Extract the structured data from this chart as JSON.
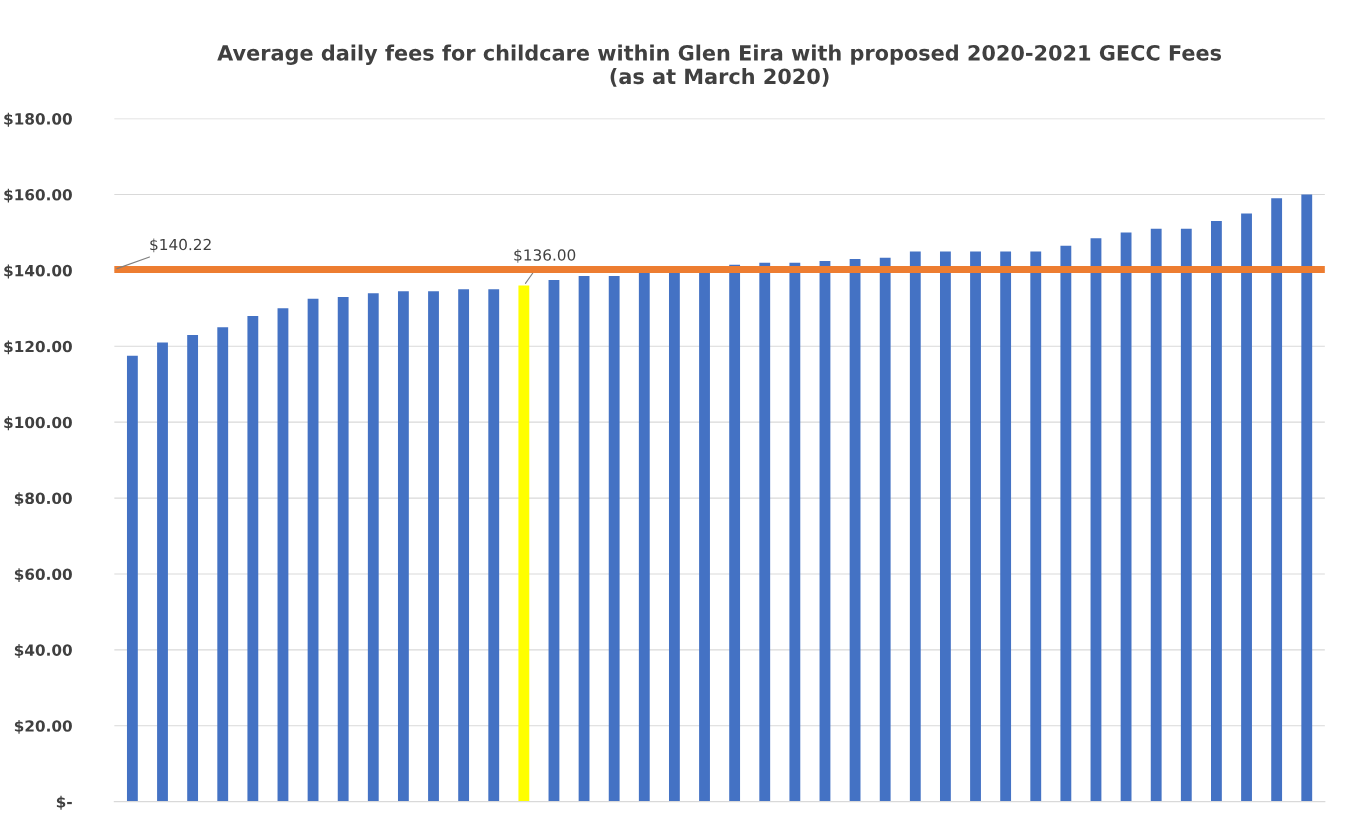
{
  "chart_data": {
    "type": "bar",
    "title": "Average daily fees for childcare within Glen Eira with proposed 2020-2021 GECC Fees\n(as at March 2020)",
    "categories": [
      null,
      null,
      null,
      null,
      null,
      null,
      null,
      null,
      null,
      null,
      null,
      null,
      null,
      null,
      null,
      null,
      null,
      null,
      null,
      null,
      null,
      null,
      null,
      null,
      null,
      null,
      null,
      null,
      null,
      null,
      null,
      null,
      null,
      null,
      null,
      null,
      null,
      null,
      null,
      null
    ],
    "values": [
      117.5,
      121,
      123,
      125,
      128,
      130,
      132.5,
      133,
      134,
      134.5,
      134.5,
      135,
      135,
      136,
      137.5,
      138.5,
      138.5,
      140,
      140,
      140,
      141.5,
      142,
      142,
      142.5,
      143,
      143.3,
      145,
      145,
      145,
      145,
      145,
      146.5,
      148.5,
      150,
      151,
      151,
      153,
      155,
      159,
      160
    ],
    "colors": [
      "#4472c4",
      "#4472c4",
      "#4472c4",
      "#4472c4",
      "#4472c4",
      "#4472c4",
      "#4472c4",
      "#4472c4",
      "#4472c4",
      "#4472c4",
      "#4472c4",
      "#4472c4",
      "#4472c4",
      "#ffff00",
      "#4472c4",
      "#4472c4",
      "#4472c4",
      "#4472c4",
      "#4472c4",
      "#4472c4",
      "#4472c4",
      "#4472c4",
      "#4472c4",
      "#4472c4",
      "#4472c4",
      "#4472c4",
      "#4472c4",
      "#4472c4",
      "#4472c4",
      "#4472c4",
      "#4472c4",
      "#4472c4",
      "#4472c4",
      "#4472c4",
      "#4472c4",
      "#4472c4",
      "#4472c4",
      "#4472c4",
      "#4472c4",
      "#4472c4"
    ],
    "value_labels": [
      null,
      null,
      null,
      null,
      null,
      null,
      null,
      null,
      null,
      null,
      null,
      null,
      null,
      "$136.00",
      null,
      null,
      null,
      null,
      null,
      null,
      null,
      null,
      null,
      null,
      null,
      null,
      null,
      null,
      null,
      null,
      null,
      null,
      null,
      null,
      null,
      null,
      null,
      null,
      null,
      null
    ],
    "ylim": [
      0,
      180
    ],
    "yticks": [
      {
        "value": 0,
        "label": "$-"
      },
      {
        "value": 20,
        "label": "$20.00"
      },
      {
        "value": 40,
        "label": "$40.00"
      },
      {
        "value": 60,
        "label": "$60.00"
      },
      {
        "value": 80,
        "label": "$80.00"
      },
      {
        "value": 100,
        "label": "$100.00"
      },
      {
        "value": 120,
        "label": "$120.00"
      },
      {
        "value": 140,
        "label": "$140.00"
      },
      {
        "value": 160,
        "label": "$160.00"
      },
      {
        "value": 180,
        "label": "$180.00"
      }
    ],
    "ref_lines": [
      {
        "axis": "y",
        "value": 140.22,
        "label": "$140.22",
        "color": "#ed7d31"
      }
    ],
    "grid": "y"
  }
}
